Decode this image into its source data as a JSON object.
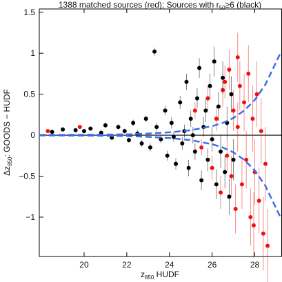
{
  "chart_data": {
    "type": "scatter",
    "title": [
      "1388 matched sources (red); Sources with r",
      "50",
      "≥6 (black)"
    ],
    "x_label": [
      "z",
      "850",
      " HUDF"
    ],
    "y_label": [
      "Δz",
      "850",
      ": GOODS − HUDF"
    ],
    "xlim": [
      17.9,
      29.26
    ],
    "ylim": [
      -1.48,
      1.54
    ],
    "xticks": [
      20,
      22,
      24,
      26,
      28
    ],
    "yticks": [
      {
        "value": -1,
        "label": "−1"
      },
      {
        "value": -0.5,
        "label": "−0.5"
      },
      0,
      0.5,
      1,
      1.5
    ],
    "hline": 0,
    "series": [
      {
        "color": "#ee1111",
        "x": [
          18.3,
          19.8,
          25.2,
          25.5,
          25.8,
          26.0,
          26.2,
          26.4,
          26.5,
          26.7,
          26.8,
          26.9,
          27.0,
          27.1,
          27.2,
          27.3,
          27.4,
          27.5,
          27.6,
          27.7,
          27.8,
          27.9,
          28.0,
          28.1,
          28.2,
          28.3,
          28.4,
          28.5,
          28.6,
          27.95,
          27.2,
          26.6
        ],
        "values": [
          0.05,
          0.1,
          0.3,
          -0.15,
          0.45,
          -0.4,
          0.2,
          -0.7,
          0.55,
          -0.25,
          0.8,
          -0.5,
          0.3,
          -0.9,
          0.1,
          0.6,
          -0.6,
          0.4,
          -0.3,
          0.75,
          -1.0,
          0.2,
          -0.45,
          0.5,
          -0.8,
          0.05,
          -1.2,
          -0.35,
          -1.35,
          -1.1,
          0.95,
          0.65
        ],
        "errors": [
          0.02,
          0.02,
          0.1,
          0.1,
          0.15,
          0.15,
          0.15,
          0.2,
          0.2,
          0.2,
          0.25,
          0.25,
          0.25,
          0.3,
          0.3,
          0.3,
          0.3,
          0.35,
          0.35,
          0.35,
          0.35,
          0.4,
          0.4,
          0.4,
          0.4,
          0.4,
          0.45,
          0.45,
          0.45,
          0.4,
          0.3,
          0.2
        ]
      },
      {
        "color": "#000000",
        "x": [
          18.5,
          19,
          19.6,
          20,
          20.3,
          20.8,
          21,
          21.3,
          21.6,
          21.9,
          22.1,
          22.3,
          22.5,
          22.7,
          22.9,
          23.1,
          23.3,
          23.4,
          23.6,
          23.8,
          23.9,
          24.1,
          24.3,
          24.5,
          24.6,
          24.8,
          24.9,
          25.0,
          25.2,
          25.3,
          25.4,
          25.5,
          25.6,
          25.7,
          25.8,
          25.9,
          26.0,
          26.1,
          26.2,
          26.3,
          26.4,
          26.5,
          26.6,
          26.7,
          26.8,
          26.9,
          27.0,
          25.1,
          24.7,
          24.2
        ],
        "values": [
          0.04,
          0.07,
          0.06,
          0.05,
          0.08,
          0.03,
          0.12,
          -0.03,
          0.1,
          0.05,
          -0.06,
          0.15,
          0.02,
          -0.1,
          0.2,
          -0.15,
          1.02,
          0.1,
          -0.05,
          0.3,
          -0.25,
          0.15,
          -0.35,
          0.4,
          -0.1,
          0.65,
          -0.4,
          0.2,
          -0.2,
          0.45,
          0.82,
          -0.55,
          0.1,
          0.3,
          -0.3,
          0.6,
          -0.05,
          0.9,
          -0.6,
          0.35,
          -0.2,
          0.7,
          -0.45,
          0.15,
          -0.75,
          0.5,
          -0.3,
          0.0,
          0.05,
          -0.02
        ],
        "errors": [
          0,
          0,
          0.02,
          0.02,
          0.02,
          0.02,
          0.03,
          0.03,
          0.03,
          0.03,
          0.03,
          0.04,
          0.04,
          0.04,
          0.04,
          0.05,
          0.05,
          0.05,
          0.05,
          0.06,
          0.06,
          0.07,
          0.07,
          0.08,
          0.08,
          0.1,
          0.1,
          0.1,
          0.1,
          0.12,
          0.12,
          0.12,
          0.12,
          0.14,
          0.14,
          0.15,
          0.15,
          0.18,
          0.18,
          0.18,
          0.2,
          0.2,
          0.2,
          0.2,
          0.22,
          0.22,
          0.25,
          0.1,
          0.08,
          0.06
        ]
      }
    ],
    "curves": [
      {
        "color": "#3a6ee8",
        "x": [
          17.9,
          20,
          22,
          23,
          24,
          25,
          26,
          26.5,
          27,
          27.5,
          28,
          28.5,
          29.2
        ],
        "values": [
          0.003,
          0.005,
          0.01,
          0.02,
          0.035,
          0.06,
          0.11,
          0.15,
          0.21,
          0.3,
          0.43,
          0.62,
          1.0
        ]
      },
      {
        "color": "#3a6ee8",
        "x": [
          17.9,
          20,
          22,
          23,
          24,
          25,
          26,
          26.5,
          27,
          27.5,
          28,
          28.5,
          29.2
        ],
        "values": [
          -0.003,
          -0.005,
          -0.01,
          -0.02,
          -0.035,
          -0.06,
          -0.11,
          -0.15,
          -0.21,
          -0.3,
          -0.43,
          -0.62,
          -1.0
        ]
      }
    ]
  }
}
